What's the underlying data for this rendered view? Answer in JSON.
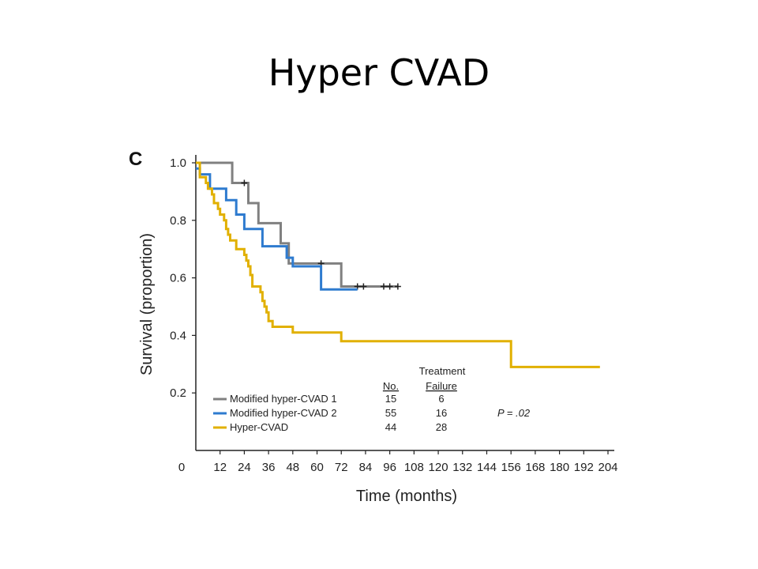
{
  "slide": {
    "title": "Hyper CVAD"
  },
  "chart_data": {
    "type": "line",
    "step": true,
    "panel_label": "C",
    "title": "",
    "xlabel": "Time (months)",
    "ylabel": "Survival (proportion)",
    "xlim": [
      0,
      204
    ],
    "ylim": [
      0,
      1.0
    ],
    "x_ticks": [
      0,
      12,
      24,
      36,
      48,
      60,
      72,
      84,
      96,
      108,
      120,
      132,
      144,
      156,
      168,
      180,
      192,
      204
    ],
    "y_ticks": [
      0.2,
      0.4,
      0.6,
      0.8,
      1.0
    ],
    "y_tick_labels": [
      "0.2",
      "0.4",
      "0.6",
      "0.8",
      "1.0"
    ],
    "grid": false,
    "legend": {
      "position": "bottom-center",
      "header_line1": "Treatment",
      "col_no": "No.",
      "col_failure": "Failure",
      "p_value": "P = .02"
    },
    "series": [
      {
        "name": "Modified hyper-CVAD 1",
        "no": "15",
        "failure": "6",
        "color": "#808080",
        "points": [
          [
            0,
            1.0
          ],
          [
            18,
            1.0
          ],
          [
            18,
            0.93
          ],
          [
            26,
            0.93
          ],
          [
            26,
            0.86
          ],
          [
            31,
            0.86
          ],
          [
            31,
            0.79
          ],
          [
            42,
            0.79
          ],
          [
            42,
            0.72
          ],
          [
            46,
            0.72
          ],
          [
            46,
            0.65
          ],
          [
            72,
            0.65
          ],
          [
            72,
            0.57
          ],
          [
            100,
            0.57
          ]
        ],
        "censor_x": [
          24,
          62,
          80,
          83,
          93,
          96,
          100
        ]
      },
      {
        "name": "Modified hyper-CVAD 2",
        "no": "55",
        "failure": "16",
        "color": "#2e7bcf",
        "points": [
          [
            0,
            0.98
          ],
          [
            2,
            0.98
          ],
          [
            2,
            0.96
          ],
          [
            7,
            0.96
          ],
          [
            7,
            0.91
          ],
          [
            15,
            0.91
          ],
          [
            15,
            0.87
          ],
          [
            20,
            0.87
          ],
          [
            20,
            0.82
          ],
          [
            24,
            0.82
          ],
          [
            24,
            0.77
          ],
          [
            33,
            0.77
          ],
          [
            33,
            0.71
          ],
          [
            45,
            0.71
          ],
          [
            45,
            0.67
          ],
          [
            48,
            0.67
          ],
          [
            48,
            0.64
          ],
          [
            62,
            0.64
          ],
          [
            62,
            0.56
          ],
          [
            80,
            0.56
          ]
        ],
        "censor_x": []
      },
      {
        "name": "Hyper-CVAD",
        "no": "44",
        "failure": "28",
        "color": "#e1b000",
        "points": [
          [
            0,
            1.0
          ],
          [
            2,
            1.0
          ],
          [
            2,
            0.95
          ],
          [
            5,
            0.95
          ],
          [
            5,
            0.93
          ],
          [
            6,
            0.93
          ],
          [
            6,
            0.91
          ],
          [
            8,
            0.91
          ],
          [
            8,
            0.89
          ],
          [
            9,
            0.89
          ],
          [
            9,
            0.86
          ],
          [
            11,
            0.86
          ],
          [
            11,
            0.84
          ],
          [
            12,
            0.84
          ],
          [
            12,
            0.82
          ],
          [
            14,
            0.82
          ],
          [
            14,
            0.8
          ],
          [
            15,
            0.8
          ],
          [
            15,
            0.77
          ],
          [
            16,
            0.77
          ],
          [
            16,
            0.75
          ],
          [
            17,
            0.75
          ],
          [
            17,
            0.73
          ],
          [
            20,
            0.73
          ],
          [
            20,
            0.7
          ],
          [
            24,
            0.7
          ],
          [
            24,
            0.68
          ],
          [
            25,
            0.68
          ],
          [
            25,
            0.66
          ],
          [
            26,
            0.66
          ],
          [
            26,
            0.64
          ],
          [
            27,
            0.64
          ],
          [
            27,
            0.61
          ],
          [
            28,
            0.61
          ],
          [
            28,
            0.57
          ],
          [
            32,
            0.57
          ],
          [
            32,
            0.55
          ],
          [
            33,
            0.55
          ],
          [
            33,
            0.52
          ],
          [
            34,
            0.52
          ],
          [
            34,
            0.5
          ],
          [
            35,
            0.5
          ],
          [
            35,
            0.48
          ],
          [
            36,
            0.48
          ],
          [
            36,
            0.45
          ],
          [
            38,
            0.45
          ],
          [
            38,
            0.43
          ],
          [
            48,
            0.43
          ],
          [
            48,
            0.41
          ],
          [
            72,
            0.41
          ],
          [
            72,
            0.38
          ],
          [
            156,
            0.38
          ],
          [
            156,
            0.29
          ],
          [
            200,
            0.29
          ]
        ],
        "censor_x": []
      }
    ]
  }
}
